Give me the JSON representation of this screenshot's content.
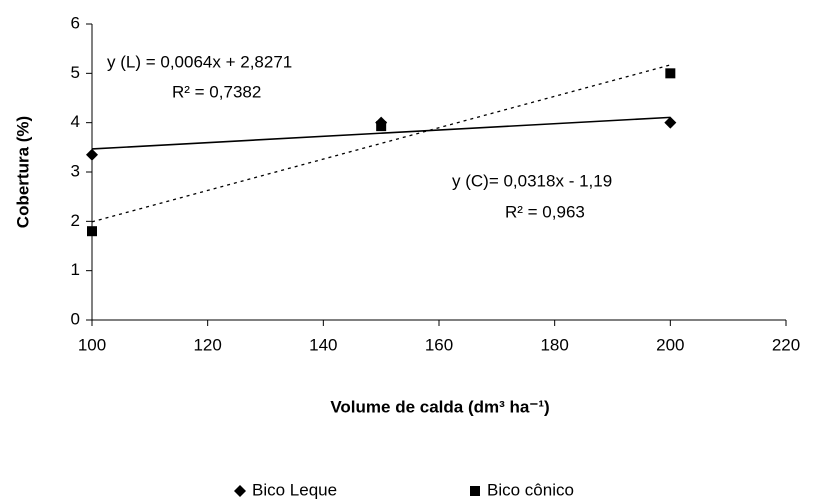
{
  "chart_data": {
    "type": "scatter",
    "x_label": "Volume de calda (dm³ ha⁻¹)",
    "y_label": "Cobertura (%)",
    "x": [
      100,
      150,
      200
    ],
    "series": [
      {
        "name": "Bico Leque",
        "color": "#000000",
        "marker": "diamond",
        "values": [
          3.35,
          4.0,
          4.0
        ],
        "trendline": {
          "slope": 0.0064,
          "intercept": 2.8271,
          "style": "solid"
        }
      },
      {
        "name": "Bico cônico",
        "color": "#000000",
        "marker": "square",
        "values": [
          1.8,
          3.93,
          5.0
        ],
        "trendline": {
          "slope": 0.0318,
          "intercept": -1.19,
          "style": "dotted"
        }
      }
    ],
    "annotations": [
      "y (L) = 0,0064x + 2,8271",
      "R² = 0,7382",
      "y (C)= 0,0318x - 1,19",
      "R² = 0,963"
    ],
    "xlim": [
      100,
      220
    ],
    "xticks": [
      100,
      120,
      140,
      160,
      180,
      200,
      220
    ],
    "ylim": [
      0,
      6
    ],
    "yticks": [
      0,
      1,
      2,
      3,
      4,
      5,
      6
    ],
    "grid": false,
    "legend": "bottom"
  }
}
